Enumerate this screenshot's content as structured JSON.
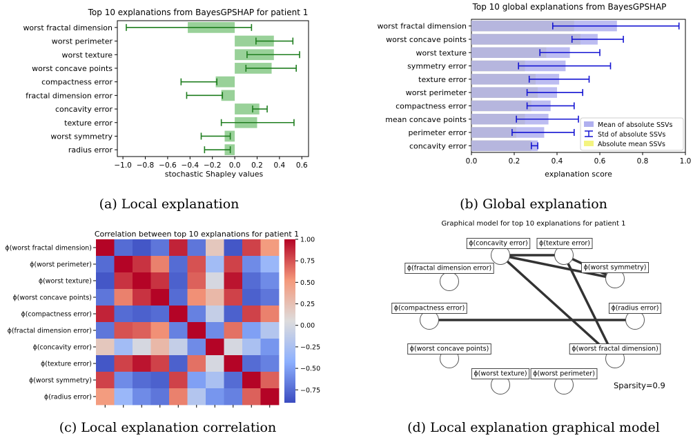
{
  "panels": {
    "a": {
      "caption": "(a) Local explanation"
    },
    "b": {
      "caption": "(b) Global explanation"
    },
    "c": {
      "caption": "(c) Local explanation correlation"
    },
    "d": {
      "caption": "(d) Local explanation graphical model"
    }
  },
  "chart_data": [
    {
      "id": "local",
      "type": "bar",
      "orientation": "horizontal",
      "title": "Top 10 explanations from BayesGPSHAP for patient 1",
      "xlabel": "stochastic Shapley values",
      "xlim": [
        -1.05,
        0.66
      ],
      "xticks": [
        -1.0,
        -0.8,
        -0.6,
        -0.4,
        -0.2,
        0.0,
        0.2,
        0.4,
        0.6
      ],
      "xtick_labels": [
        "−1.0",
        "−0.8",
        "−0.6",
        "−0.4",
        "−0.2",
        "0.0",
        "0.2",
        "0.4",
        "0.6"
      ],
      "categories": [
        "worst fractal dimension",
        "worst perimeter",
        "worst texture",
        "worst concave points",
        "compactness error",
        "fractal dimension error",
        "concavity error",
        "texture error",
        "worst symmetry",
        "radius error"
      ],
      "values": [
        -0.42,
        0.35,
        0.35,
        0.33,
        -0.17,
        -0.12,
        0.22,
        0.2,
        -0.09,
        -0.09
      ],
      "err_low": [
        -0.97,
        0.19,
        0.11,
        0.1,
        -0.48,
        -0.43,
        0.16,
        -0.12,
        -0.3,
        -0.27
      ],
      "err_high": [
        0.15,
        0.52,
        0.58,
        0.55,
        -0.16,
        -0.11,
        0.29,
        0.53,
        -0.04,
        -0.04
      ],
      "colors": {
        "bar": "#99d199",
        "error": "#1e7d1e"
      }
    },
    {
      "id": "global",
      "type": "bar",
      "orientation": "horizontal",
      "title": "Top 10 global explanations from BayesGPSHAP",
      "xlabel": "explanation score",
      "xlim": [
        0.0,
        1.0
      ],
      "xticks": [
        0.0,
        0.2,
        0.4,
        0.6,
        0.8,
        1.0
      ],
      "xtick_labels": [
        "0.0",
        "0.2",
        "0.4",
        "0.6",
        "0.8",
        "1.0"
      ],
      "categories": [
        "worst fractal dimension",
        "worst concave points",
        "worst texture",
        "symmetry error",
        "texture error",
        "worst perimeter",
        "compactness error",
        "mean concave points",
        "perimeter error",
        "concavity error"
      ],
      "series": [
        {
          "name": "Mean of absolute SSVs",
          "values": [
            0.68,
            0.59,
            0.46,
            0.44,
            0.41,
            0.4,
            0.37,
            0.36,
            0.34,
            0.31
          ]
        },
        {
          "name": "Std of absolute SSVs",
          "err_low": [
            0.38,
            0.47,
            0.32,
            0.22,
            0.27,
            0.26,
            0.26,
            0.21,
            0.19,
            0.28
          ],
          "err_high": [
            0.97,
            0.71,
            0.6,
            0.65,
            0.55,
            0.52,
            0.48,
            0.5,
            0.48,
            0.31
          ]
        },
        {
          "name": "Absolute mean SSVs",
          "values": [
            0.48,
            0.51,
            0.35,
            0.25,
            0.3,
            0.31,
            0.28,
            0.25,
            0.21,
            0.28
          ]
        }
      ],
      "legend_position": "lower-right",
      "colors": {
        "mean": "#b0b0ef",
        "std": "#1414d2",
        "absmean": "#d6d680",
        "legend_absmean": "#f4f480"
      }
    },
    {
      "id": "correlation",
      "type": "heatmap",
      "title": "Correlation between top 10 explanations for patient 1",
      "row_labels": [
        "ϕ(worst fractal dimension)",
        "ϕ(worst perimeter)",
        "ϕ(worst texture)",
        "ϕ(worst concave points)",
        "ϕ(compactness error)",
        "ϕ(fractal dimension error)",
        "ϕ(concavity error)",
        "ϕ(texture error)",
        "ϕ(worst symmetry)",
        "ϕ(radius error)"
      ],
      "colorbar_ticks": [
        1.0,
        0.75,
        0.5,
        0.25,
        0.0,
        -0.25,
        -0.5,
        -0.75
      ],
      "colorbar_labels": [
        "1.00",
        "0.75",
        "0.50",
        "0.25",
        "0.00",
        "−0.25",
        "−0.50",
        "−0.75"
      ],
      "vmin": -0.9,
      "vmax": 1.0,
      "matrix": [
        [
          1.0,
          -0.75,
          -0.85,
          -0.7,
          0.9,
          -0.7,
          0.2,
          -0.85,
          0.8,
          0.5
        ],
        [
          -0.75,
          1.0,
          0.85,
          0.6,
          -0.75,
          0.75,
          -0.3,
          0.8,
          -0.6,
          -0.35
        ],
        [
          -0.85,
          0.85,
          1.0,
          0.85,
          -0.8,
          0.7,
          0.0,
          0.95,
          -0.75,
          -0.6
        ],
        [
          -0.7,
          0.6,
          0.85,
          1.0,
          -0.75,
          0.55,
          0.3,
          0.8,
          -0.8,
          -0.7
        ],
        [
          0.9,
          -0.75,
          -0.8,
          -0.75,
          1.0,
          -0.65,
          -0.1,
          -0.8,
          0.8,
          0.6
        ],
        [
          -0.7,
          0.75,
          0.7,
          0.55,
          -0.65,
          1.0,
          -0.6,
          0.65,
          -0.5,
          -0.2
        ],
        [
          0.2,
          -0.3,
          0.0,
          0.3,
          -0.1,
          -0.6,
          1.0,
          0.0,
          -0.25,
          -0.55
        ],
        [
          -0.85,
          0.8,
          0.95,
          0.8,
          -0.8,
          0.65,
          0.0,
          1.0,
          -0.75,
          -0.65
        ],
        [
          0.8,
          -0.6,
          -0.75,
          -0.8,
          0.8,
          -0.5,
          -0.25,
          -0.75,
          1.0,
          0.7
        ],
        [
          0.5,
          -0.35,
          -0.6,
          -0.7,
          0.6,
          -0.2,
          -0.55,
          -0.65,
          0.7,
          1.0
        ]
      ]
    }
  ],
  "graph": {
    "title": "Graphical model for top 10 explanations for patient 1",
    "nodes": [
      "ϕ(concavity error)",
      "ϕ(texture error)",
      "ϕ(fractal dimension error)",
      "ϕ(worst symmetry)",
      "ϕ(compactness error)",
      "ϕ(radius error)",
      "ϕ(worst concave points)",
      "ϕ(worst fractal dimension)",
      "ϕ(worst texture)",
      "ϕ(worst perimeter)"
    ],
    "edges": [
      [
        "ϕ(concavity error)",
        "ϕ(texture error)"
      ],
      [
        "ϕ(concavity error)",
        "ϕ(worst symmetry)"
      ],
      [
        "ϕ(concavity error)",
        "ϕ(worst fractal dimension)"
      ],
      [
        "ϕ(texture error)",
        "ϕ(worst symmetry)"
      ],
      [
        "ϕ(texture error)",
        "ϕ(worst fractal dimension)"
      ],
      [
        "ϕ(compactness error)",
        "ϕ(radius error)"
      ]
    ],
    "annotation": "Sparsity=0.9"
  }
}
